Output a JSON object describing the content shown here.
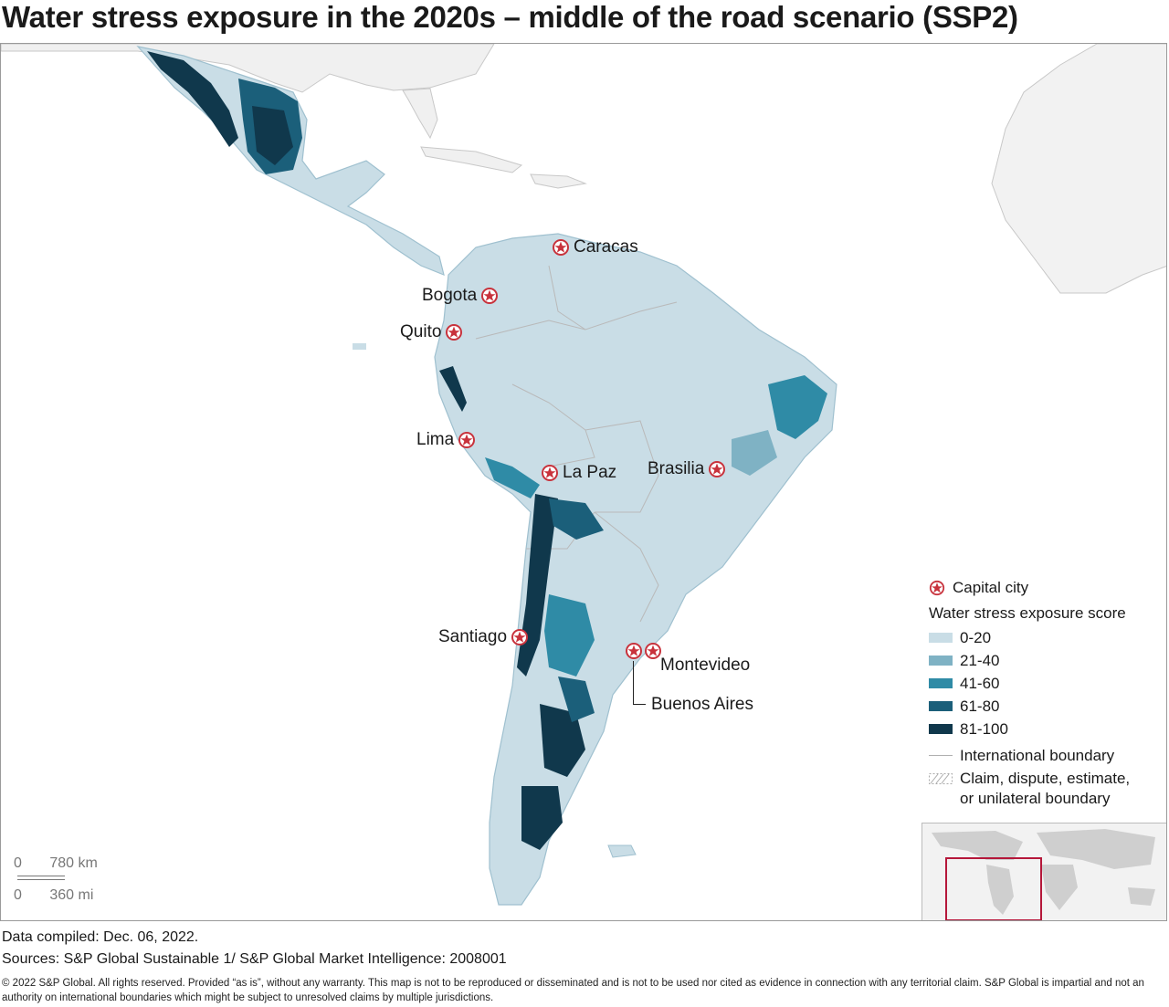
{
  "title": "Water stress exposure in the 2020s – middle of the road scenario (SSP2)",
  "cities": [
    {
      "name": "Caracas"
    },
    {
      "name": "Bogota"
    },
    {
      "name": "Quito"
    },
    {
      "name": "Lima"
    },
    {
      "name": "La Paz"
    },
    {
      "name": "Brasilia"
    },
    {
      "name": "Santiago"
    },
    {
      "name": "Montevideo"
    },
    {
      "name": "Buenos Aires"
    }
  ],
  "legend": {
    "capital_label": "Capital city",
    "score_heading": "Water stress exposure score",
    "classes": [
      {
        "label": "0-20",
        "color": "#c9dde6"
      },
      {
        "label": "21-40",
        "color": "#7fb2c4"
      },
      {
        "label": "41-60",
        "color": "#2f8ba6"
      },
      {
        "label": "61-80",
        "color": "#1b5f7a"
      },
      {
        "label": "81-100",
        "color": "#10384c"
      }
    ],
    "boundary_label": "International boundary",
    "claim_label_1": "Claim, dispute, estimate,",
    "claim_label_2": "or unilateral boundary"
  },
  "scale": {
    "km_zero": "0",
    "km_value": "780",
    "km_unit": "km",
    "mi_zero": "0",
    "mi_value": "360",
    "mi_unit": "mi"
  },
  "colors": {
    "land_other": "#f0f0f0",
    "star_ring": "#c8323c",
    "inset_frame": "#b5173a"
  },
  "footer": {
    "compiled": "Data compiled: Dec. 06, 2022.",
    "sources": "Sources: S&P Global Sustainable 1/ S&P Global Market Intelligence: 2008001",
    "copyright": "© 2022 S&P Global. All rights reserved. Provided “as is”, without any warranty. This map is not to be reproduced or disseminated and is not to be used nor cited as evidence in connection with any territorial claim. S&P Global is impartial and not an authority on international boundaries which might be subject to unresolved claims by multiple jurisdictions."
  }
}
